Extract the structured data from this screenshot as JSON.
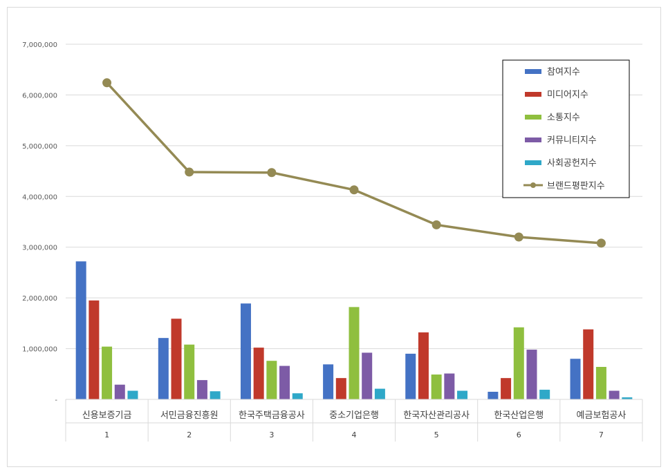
{
  "chart_data": {
    "type": "bar",
    "categories": [
      "신용보증기금",
      "서민금융진흥원",
      "한국주택금융공사",
      "중소기업은행",
      "한국자산관리공사",
      "한국산업은행",
      "예금보험공사"
    ],
    "category_numbers": [
      "1",
      "2",
      "3",
      "4",
      "5",
      "6",
      "7"
    ],
    "ylim": [
      0,
      7000000
    ],
    "yticks": [
      0,
      1000000,
      2000000,
      3000000,
      4000000,
      5000000,
      6000000,
      7000000
    ],
    "ytick_labels": [
      "-",
      "1,000,000",
      "2,000,000",
      "3,000,000",
      "4,000,000",
      "5,000,000",
      "6,000,000",
      "7,000,000"
    ],
    "grid": true,
    "legend_position": "top-right",
    "series": [
      {
        "name": "참여지수",
        "type": "bar",
        "color": "#4472c4",
        "values": [
          2720000,
          1210000,
          1890000,
          690000,
          900000,
          150000,
          800000
        ]
      },
      {
        "name": "미디어지수",
        "type": "bar",
        "color": "#c0392b",
        "values": [
          1950000,
          1590000,
          1020000,
          420000,
          1320000,
          420000,
          1380000
        ]
      },
      {
        "name": "소통지수",
        "type": "bar",
        "color": "#8fbf3f",
        "values": [
          1040000,
          1080000,
          760000,
          1820000,
          490000,
          1420000,
          640000
        ]
      },
      {
        "name": "커뮤니티지수",
        "type": "bar",
        "color": "#7d5ba6",
        "values": [
          290000,
          380000,
          660000,
          920000,
          510000,
          980000,
          170000
        ]
      },
      {
        "name": "사회공헌지수",
        "type": "bar",
        "color": "#2fa8c8",
        "values": [
          170000,
          160000,
          120000,
          210000,
          170000,
          190000,
          40000
        ]
      },
      {
        "name": "브랜드평판지수",
        "type": "line",
        "color": "#948a54",
        "values": [
          6240000,
          4480000,
          4470000,
          4130000,
          3440000,
          3200000,
          3080000
        ]
      }
    ]
  }
}
